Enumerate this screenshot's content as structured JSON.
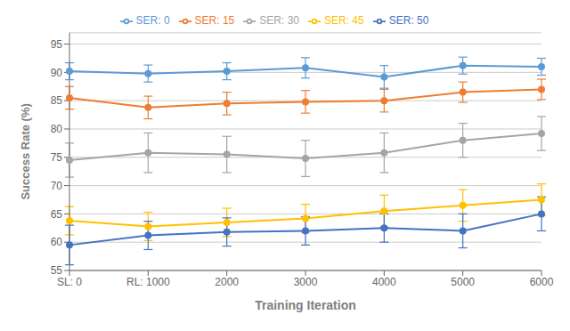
{
  "chart_data": {
    "type": "line",
    "xlabel": "Training Iteration",
    "ylabel": "Success Rate (%)",
    "categories": [
      "SL: 0",
      "RL: 1000",
      "2000",
      "3000",
      "4000",
      "5000",
      "6000"
    ],
    "series": [
      {
        "name": "SER: 0",
        "color": "#5B9BD5",
        "values": [
          90.2,
          89.8,
          90.2,
          90.8,
          89.2,
          91.2,
          91.0
        ],
        "errors": [
          1.5,
          1.5,
          1.5,
          1.8,
          2.0,
          1.5,
          1.5
        ]
      },
      {
        "name": "SER: 15",
        "color": "#ED7D31",
        "values": [
          85.5,
          83.8,
          84.5,
          84.8,
          85.0,
          86.5,
          87.0
        ],
        "errors": [
          2.0,
          2.0,
          2.0,
          2.0,
          2.0,
          1.8,
          1.8
        ]
      },
      {
        "name": "SER: 30",
        "color": "#A5A5A5",
        "values": [
          74.5,
          75.8,
          75.5,
          74.8,
          75.8,
          78.0,
          79.2
        ],
        "errors": [
          3.0,
          3.5,
          3.2,
          3.2,
          3.5,
          3.0,
          3.0
        ]
      },
      {
        "name": "SER: 45",
        "color": "#FFC000",
        "values": [
          63.8,
          62.8,
          63.5,
          64.2,
          65.5,
          66.5,
          67.5
        ],
        "errors": [
          2.5,
          2.5,
          2.5,
          2.5,
          2.8,
          2.8,
          2.8
        ]
      },
      {
        "name": "SER: 50",
        "color": "#4472C4",
        "values": [
          59.5,
          61.2,
          61.8,
          62.0,
          62.5,
          62.0,
          65.0
        ],
        "errors": [
          3.5,
          2.5,
          2.5,
          2.5,
          2.5,
          3.0,
          3.0
        ]
      }
    ],
    "ylim": [
      55,
      97
    ],
    "yticks": [
      55,
      60,
      65,
      70,
      75,
      80,
      85,
      90,
      95
    ],
    "grid": true,
    "legend": "top",
    "marker": "circle"
  }
}
